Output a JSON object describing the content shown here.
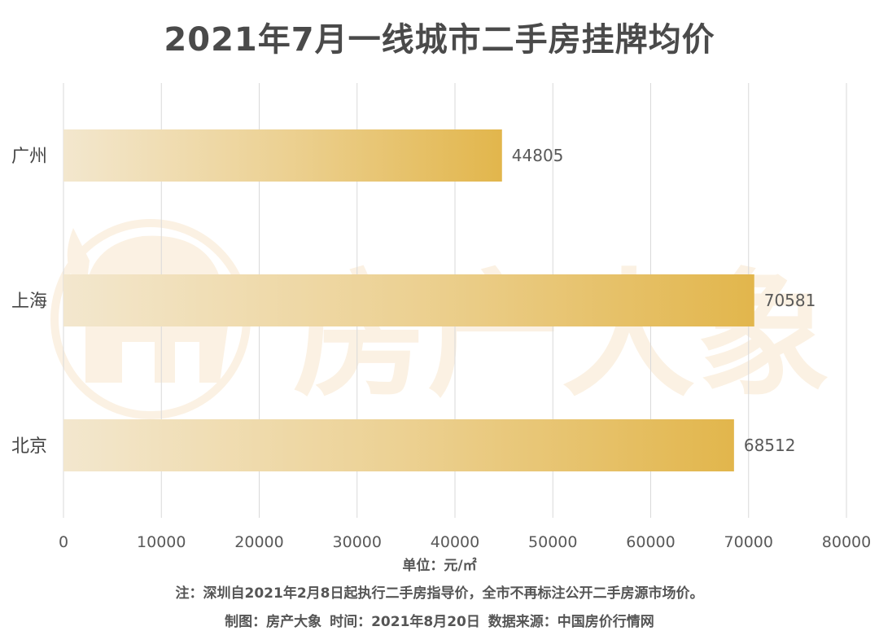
{
  "title": "2021年7月一线城市二手房挂牌均价",
  "chart_data": {
    "type": "bar",
    "orientation": "horizontal",
    "categories": [
      "广州",
      "上海",
      "北京"
    ],
    "values": [
      44805,
      70581,
      68512
    ],
    "xlim": [
      0,
      80000
    ],
    "xticks": [
      0,
      10000,
      20000,
      30000,
      40000,
      50000,
      60000,
      70000,
      80000
    ],
    "grid": true,
    "legend": "none"
  },
  "unit_label": "单位：元/㎡",
  "note": "注：深圳自2021年2月8日起执行二手房指导价，全市不再标注公开二手房源市场价。",
  "credit": "制图：房产大象   时间：2021年8月20日   数据来源：中国房价行情网",
  "watermark": "房产大象",
  "colors": {
    "bar_start": "#f3e7ce",
    "bar_end": "#e2b64c",
    "grid": "#d9d9d9",
    "text": "#595959",
    "watermark": "#fbf1e3"
  }
}
